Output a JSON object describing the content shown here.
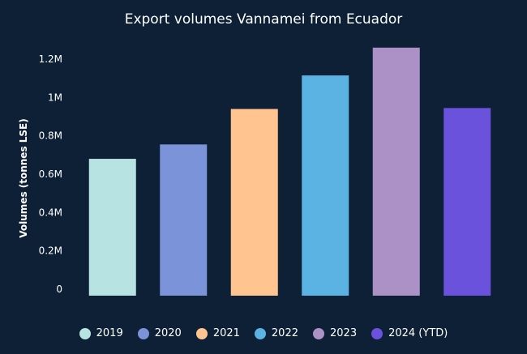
{
  "chart_data": {
    "type": "bar",
    "title": "Export volumes Vannamei from Ecuador",
    "ylabel": "Volumes (tonnes LSE)",
    "xlabel": "",
    "categories": [
      "2019",
      "2020",
      "2021",
      "2022",
      "2023",
      "2024 (YTD)"
    ],
    "values": [
      680000,
      755000,
      940000,
      1115000,
      1260000,
      945000
    ],
    "colors": [
      "#b8e3e3",
      "#7b93d8",
      "#ffc48f",
      "#5ab3e3",
      "#ac91c6",
      "#6a52dc"
    ],
    "ylim": [
      0,
      1200000
    ],
    "yticks": [
      {
        "value": 0,
        "label": "0"
      },
      {
        "value": 200000,
        "label": "0.2M"
      },
      {
        "value": 400000,
        "label": "0.4M"
      },
      {
        "value": 600000,
        "label": "0.6M"
      },
      {
        "value": 800000,
        "label": "0.8M"
      },
      {
        "value": 1000000,
        "label": "1M"
      },
      {
        "value": 1200000,
        "label": "1.2M"
      }
    ],
    "grid": false,
    "legend_position": "bottom"
  }
}
